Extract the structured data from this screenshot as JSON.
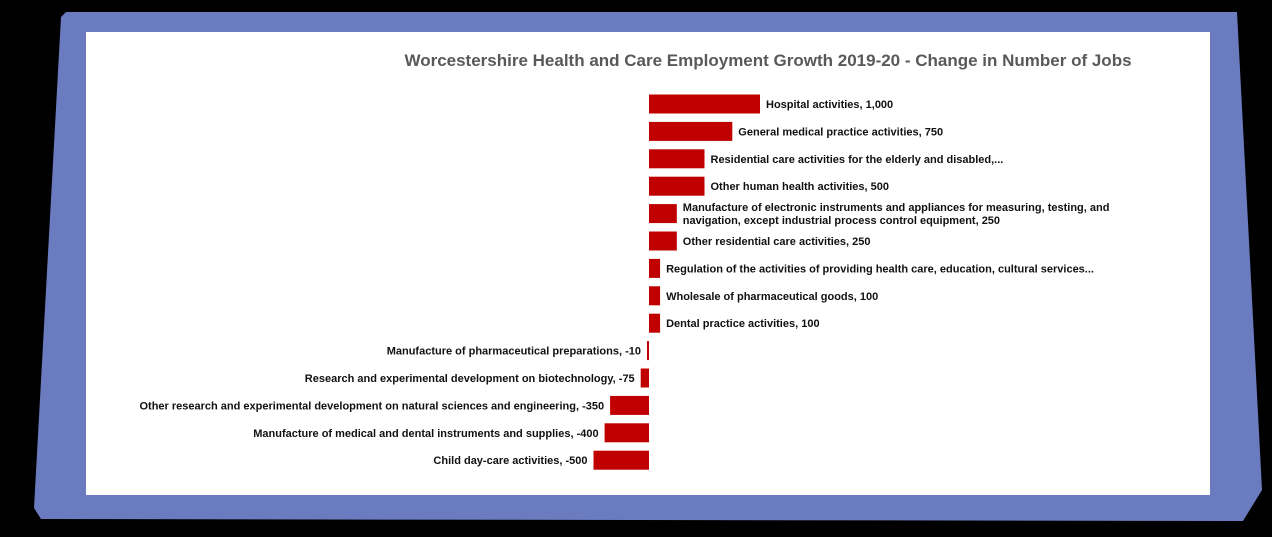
{
  "colors": {
    "bar": "#C00000",
    "frame_blue": "#6B7BC0",
    "frame_black": "#000000"
  },
  "chart_data": {
    "type": "bar",
    "orientation": "horizontal",
    "title": "Worcestershire Health and Care Employment Growth 2019-20 - Change in Number of Jobs",
    "xlabel": "",
    "ylabel": "",
    "xlim": [
      -500,
      1000
    ],
    "grid": false,
    "legend": "none",
    "categories": [
      "Hospital activities",
      "General medical practice activities",
      "Residential care activities for the elderly and disabled",
      "Other human health activities",
      "Manufacture of electronic instruments and appliances for measuring, testing, and navigation, except industrial process control equipment",
      "Other residential care activities",
      "Regulation of the activities of providing health care, education, cultural services",
      "Wholesale of pharmaceutical goods",
      "Dental practice activities",
      "Manufacture of pharmaceutical preparations",
      "Research and experimental development on biotechnology",
      "Other research and experimental development on natural sciences and engineering",
      "Manufacture of medical and dental instruments and supplies",
      "Child day-care activities"
    ],
    "values": [
      1000,
      750,
      500,
      500,
      250,
      250,
      100,
      100,
      100,
      -10,
      -75,
      -350,
      -400,
      -500
    ],
    "data_labels": [
      [
        "Hospital activities, 1,000"
      ],
      [
        "General medical practice activities, 750"
      ],
      [
        "Residential care activities for the elderly and disabled,..."
      ],
      [
        "Other human health activities, 500"
      ],
      [
        "Manufacture of electronic instruments and appliances for measuring, testing, and",
        "navigation, except industrial process control equipment, 250"
      ],
      [
        "Other residential care activities, 250"
      ],
      [
        "Regulation of the activities of providing health care, education, cultural services..."
      ],
      [
        "Wholesale of pharmaceutical goods, 100"
      ],
      [
        "Dental practice activities, 100"
      ],
      [
        "Manufacture of pharmaceutical preparations, -10"
      ],
      [
        "Research and experimental development on biotechnology, -75"
      ],
      [
        "Other research and experimental development on natural sciences and engineering, -350"
      ],
      [
        "Manufacture of medical and dental instruments and supplies, -400"
      ],
      [
        "Child day-care activities, -500"
      ]
    ]
  }
}
